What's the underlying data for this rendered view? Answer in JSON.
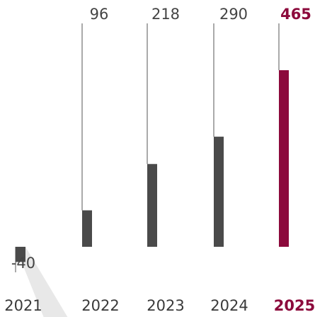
{
  "chart_data": {
    "type": "bar",
    "categories": [
      "2021",
      "2022",
      "2023",
      "2024",
      "2025"
    ],
    "values": [
      -40,
      96,
      218,
      290,
      465
    ],
    "value_labels": [
      "-40",
      "96",
      "218",
      "290",
      "465"
    ],
    "highlight_index": 4,
    "title": "",
    "xlabel": "",
    "ylabel": "",
    "colors": {
      "bar": "#4a4a4a",
      "highlight": "#8c0a3c",
      "leader_line": "#555555",
      "bar_shadow": "#e6e6e6",
      "text": "#444444"
    },
    "grid": false,
    "legend": "none"
  }
}
